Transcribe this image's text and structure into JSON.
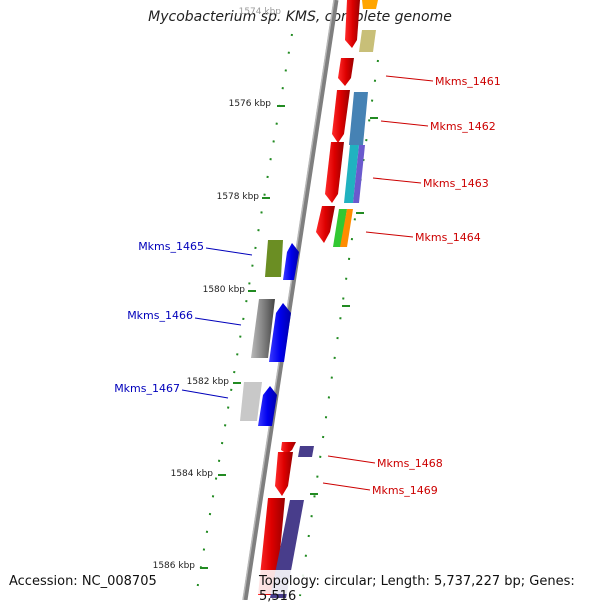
{
  "title": "Mycobacterium sp. KMS, complete genome",
  "footer": {
    "accession": "Accession: NC_008705",
    "topology": "Topology: circular; Length: 5,737,227 bp; Genes: 5,516"
  },
  "scale_labels": [
    "1574 kbp",
    "1576 kbp",
    "1578 kbp",
    "1580 kbp",
    "1582 kbp",
    "1584 kbp",
    "1586 kbp"
  ],
  "genes_right": [
    "Mkms_1461",
    "Mkms_1462",
    "Mkms_1463",
    "Mkms_1464",
    "Mkms_1468",
    "Mkms_1469"
  ],
  "genes_left": [
    "Mkms_1465",
    "Mkms_1466",
    "Mkms_1467"
  ],
  "colors": {
    "forward_label": "#cc0000",
    "reverse_label": "#0000bb",
    "backbone": "#808080",
    "ticks": "#228b22"
  }
}
